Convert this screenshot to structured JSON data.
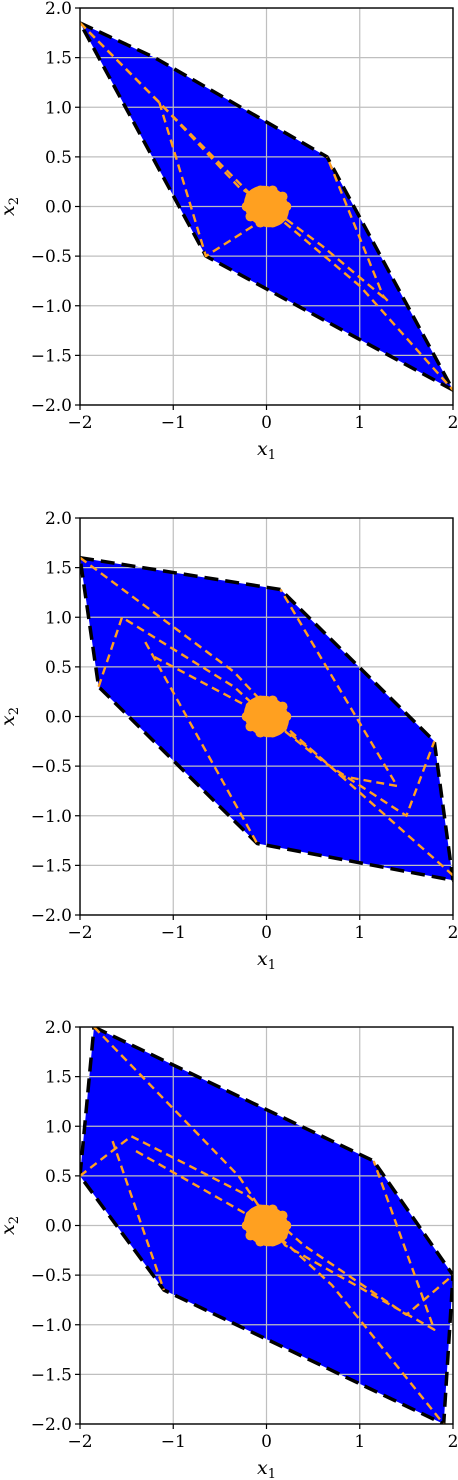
{
  "colors": {
    "region": "#0000ff",
    "boundary": "#000000",
    "trajectory": "#ffa020",
    "grid": "#bfbfbf"
  },
  "chart_data": [
    {
      "type": "area",
      "xlabel": "x",
      "xlabel_sub": "1",
      "ylabel": "x",
      "ylabel_sub": "2",
      "xlim": [
        -2,
        2
      ],
      "ylim": [
        -2,
        2
      ],
      "xticks": [
        -2,
        -1,
        0,
        1,
        2
      ],
      "yticks": [
        -2.0,
        -1.5,
        -1.0,
        -0.5,
        0.0,
        0.5,
        1.0,
        1.5,
        2.0
      ],
      "grid": true,
      "region": [
        [
          -2.0,
          1.85
        ],
        [
          -1.2,
          1.5
        ],
        [
          0.65,
          0.5
        ],
        [
          2.0,
          -1.85
        ],
        [
          -0.65,
          -0.5
        ],
        [
          -2.0,
          1.85
        ]
      ],
      "trajectories": [
        [
          [
            -2.0,
            1.85
          ],
          [
            -1.15,
            1.05
          ],
          [
            -0.3,
            0.2
          ],
          [
            0.1,
            -0.05
          ],
          [
            0.6,
            -0.4
          ],
          [
            1.3,
            -0.95
          ],
          [
            1.25,
            -0.9
          ],
          [
            0.65,
            0.5
          ]
        ],
        [
          [
            -2.0,
            1.85
          ],
          [
            -0.2,
            0.15
          ],
          [
            1.0,
            -0.8
          ],
          [
            2.0,
            -1.85
          ]
        ],
        [
          [
            -1.15,
            1.05
          ],
          [
            -0.65,
            -0.5
          ],
          [
            0.1,
            -0.05
          ]
        ]
      ],
      "core": {
        "center": [
          0.0,
          0.0
        ],
        "rx": 0.25,
        "ry": 0.2
      }
    },
    {
      "type": "area",
      "xlabel": "x",
      "xlabel_sub": "1",
      "ylabel": "x",
      "ylabel_sub": "2",
      "xlim": [
        -2,
        2
      ],
      "ylim": [
        -2,
        2
      ],
      "xticks": [
        -2,
        -1,
        0,
        1,
        2
      ],
      "yticks": [
        -2.0,
        -1.5,
        -1.0,
        -0.5,
        0.0,
        0.5,
        1.0,
        1.5,
        2.0
      ],
      "grid": true,
      "region": [
        [
          -2.0,
          1.6
        ],
        [
          0.15,
          1.28
        ],
        [
          1.8,
          -0.25
        ],
        [
          2.0,
          -1.65
        ],
        [
          -0.1,
          -1.28
        ],
        [
          -1.8,
          0.3
        ],
        [
          -2.0,
          1.6
        ]
      ],
      "trajectories": [
        [
          [
            -2.0,
            1.6
          ],
          [
            -0.35,
            0.45
          ],
          [
            0.2,
            -0.1
          ],
          [
            0.8,
            -0.6
          ],
          [
            1.4,
            -0.7
          ],
          [
            0.15,
            1.28
          ]
        ],
        [
          [
            -1.8,
            0.3
          ],
          [
            -1.55,
            1.0
          ],
          [
            -0.35,
            0.3
          ],
          [
            0.0,
            0.0
          ],
          [
            0.6,
            -0.45
          ],
          [
            1.5,
            -1.0
          ],
          [
            1.8,
            -0.25
          ]
        ],
        [
          [
            -1.3,
            0.75
          ],
          [
            -0.1,
            -1.28
          ]
        ],
        [
          [
            -1.2,
            0.6
          ],
          [
            0.0,
            0.0
          ],
          [
            0.5,
            -0.35
          ],
          [
            2.0,
            -1.6
          ]
        ]
      ],
      "core": {
        "center": [
          0.0,
          0.0
        ],
        "rx": 0.25,
        "ry": 0.2
      }
    },
    {
      "type": "area",
      "xlabel": "x",
      "xlabel_sub": "1",
      "ylabel": "x",
      "ylabel_sub": "2",
      "xlim": [
        -2,
        2
      ],
      "ylim": [
        -2,
        2
      ],
      "xticks": [
        -2,
        -1,
        0,
        1,
        2
      ],
      "yticks": [
        -2.0,
        -1.5,
        -1.0,
        -0.5,
        0.0,
        0.5,
        1.0,
        1.5,
        2.0
      ],
      "grid": true,
      "region": [
        [
          -1.85,
          2.0
        ],
        [
          1.15,
          0.65
        ],
        [
          2.0,
          -0.5
        ],
        [
          1.9,
          -2.0
        ],
        [
          -1.1,
          -0.65
        ],
        [
          -2.0,
          0.5
        ],
        [
          -1.85,
          2.0
        ]
      ],
      "trajectories": [
        [
          [
            -1.85,
            2.0
          ],
          [
            -0.3,
            0.5
          ],
          [
            0.2,
            -0.2
          ],
          [
            1.8,
            -1.05
          ],
          [
            1.15,
            0.65
          ]
        ],
        [
          [
            -2.0,
            0.5
          ],
          [
            -1.45,
            0.9
          ],
          [
            -0.2,
            0.3
          ],
          [
            0.4,
            -0.2
          ],
          [
            1.5,
            -0.9
          ],
          [
            2.0,
            -0.5
          ]
        ],
        [
          [
            -1.65,
            0.85
          ],
          [
            -1.1,
            -0.65
          ]
        ],
        [
          [
            -1.4,
            0.75
          ],
          [
            0.0,
            0.0
          ],
          [
            0.7,
            -0.6
          ],
          [
            1.9,
            -2.0
          ]
        ]
      ],
      "core": {
        "center": [
          0.0,
          0.0
        ],
        "rx": 0.25,
        "ry": 0.2
      }
    }
  ]
}
